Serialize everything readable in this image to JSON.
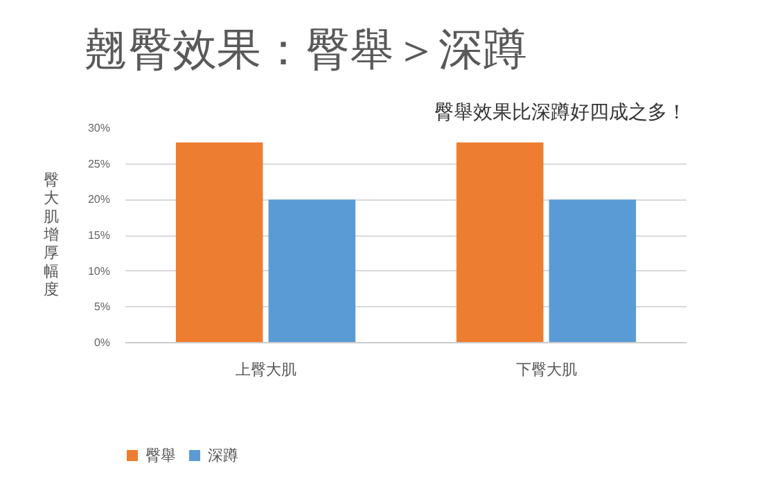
{
  "chart_data": {
    "type": "bar",
    "title": "翹臀效果：臀舉＞深蹲",
    "subtitle": "臀舉效果比深蹲好四成之多！",
    "ylabel": "臀大肌增厚幅度",
    "categories": [
      "上臀大肌",
      "下臀大肌"
    ],
    "series": [
      {
        "name": "臀舉",
        "color": "#ed7d31",
        "values": [
          28,
          28
        ]
      },
      {
        "name": "深蹲",
        "color": "#5b9bd5",
        "values": [
          20,
          20
        ]
      }
    ],
    "ylim": [
      0,
      30
    ],
    "yticks": [
      {
        "value": 0,
        "label": "0%"
      },
      {
        "value": 5,
        "label": "5%"
      },
      {
        "value": 10,
        "label": "10%"
      },
      {
        "value": 15,
        "label": "15%"
      },
      {
        "value": 20,
        "label": "20%"
      },
      {
        "value": 25,
        "label": "25%"
      },
      {
        "value": 30,
        "label": "30%"
      }
    ],
    "grid": "y",
    "legend": "bottom left"
  }
}
